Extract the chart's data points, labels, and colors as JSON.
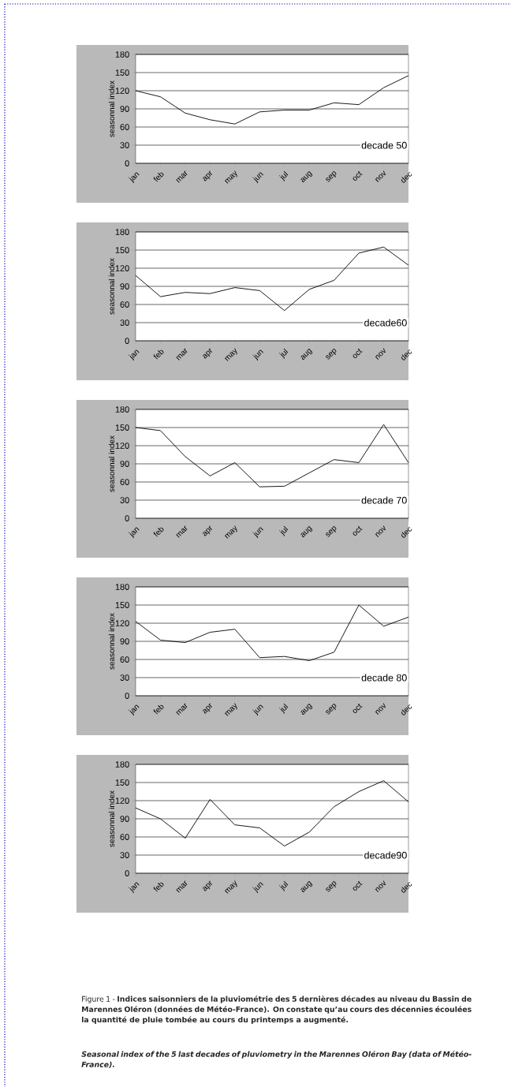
{
  "chart_data": [
    {
      "type": "line",
      "title": "decade 50",
      "ylabel": "seasonnal index",
      "categories": [
        "jan",
        "feb",
        "mar",
        "apr",
        "may",
        "jun",
        "jul",
        "aug",
        "sep",
        "oct",
        "nov",
        "dec"
      ],
      "values": [
        120,
        110,
        83,
        72,
        65,
        85,
        88,
        88,
        100,
        97,
        125,
        145
      ],
      "color": "#000000",
      "ylim": [
        0,
        180
      ],
      "yticks": [
        0,
        30,
        60,
        90,
        120,
        150,
        180
      ],
      "grid": "y",
      "marker": "none",
      "legend": false
    },
    {
      "type": "line",
      "title": "decade60",
      "ylabel": "seasonnal index",
      "categories": [
        "jan",
        "feb",
        "mar",
        "apr",
        "may",
        "jun",
        "jul",
        "aug",
        "sep",
        "oct",
        "nov",
        "dec"
      ],
      "values": [
        108,
        73,
        80,
        78,
        88,
        83,
        50,
        85,
        100,
        145,
        155,
        125
      ],
      "color": "#000000",
      "ylim": [
        0,
        180
      ],
      "yticks": [
        0,
        30,
        60,
        90,
        120,
        150,
        180
      ],
      "grid": "y",
      "marker": "none",
      "legend": false
    },
    {
      "type": "line",
      "title": "decade 70",
      "ylabel": "seasonnal index",
      "categories": [
        "jan",
        "feb",
        "mar",
        "apr",
        "may",
        "jun",
        "jul",
        "aug",
        "sep",
        "oct",
        "nov",
        "dec"
      ],
      "values": [
        150,
        145,
        102,
        70,
        92,
        52,
        53,
        75,
        97,
        92,
        155,
        92
      ],
      "color": "#000000",
      "ylim": [
        0,
        180
      ],
      "yticks": [
        0,
        30,
        60,
        90,
        120,
        150,
        180
      ],
      "grid": "y",
      "marker": "none",
      "legend": false
    },
    {
      "type": "line",
      "title": "decade 80",
      "ylabel": "seasonnal index",
      "categories": [
        "jan",
        "feb",
        "mar",
        "apr",
        "may",
        "jun",
        "jul",
        "aug",
        "sep",
        "oct",
        "nov",
        "dec"
      ],
      "values": [
        123,
        92,
        88,
        105,
        110,
        63,
        65,
        58,
        72,
        150,
        115,
        130
      ],
      "color": "#000000",
      "ylim": [
        0,
        180
      ],
      "yticks": [
        0,
        30,
        60,
        90,
        120,
        150,
        180
      ],
      "grid": "y",
      "marker": "none",
      "legend": false
    },
    {
      "type": "line",
      "title": "decade90",
      "ylabel": "seasonnal index",
      "categories": [
        "jan",
        "feb",
        "mar",
        "apr",
        "may",
        "jun",
        "jul",
        "aug",
        "sep",
        "oct",
        "nov",
        "dec"
      ],
      "values": [
        108,
        90,
        58,
        122,
        80,
        75,
        45,
        68,
        110,
        135,
        153,
        118
      ],
      "color": "#000000",
      "ylim": [
        0,
        180
      ],
      "yticks": [
        0,
        30,
        60,
        90,
        120,
        150,
        180
      ],
      "grid": "y",
      "marker": "none",
      "legend": false,
      "annotations": [
        "Figure 1 - **Indices saisonniers de la pluviométrie des 5 dernières décades au niveau du Bassin de Marennes Oléron (données de Météo-France). On constate qu’au cours des décennies écoulées la quantité de pluie tombée au cours du printemps a augmenté.**",
        "Seasonal index of the 5 last decades of pluviometry in the Marennes Oléron Bay (data of Météo-France)."
      ]
    }
  ]
}
